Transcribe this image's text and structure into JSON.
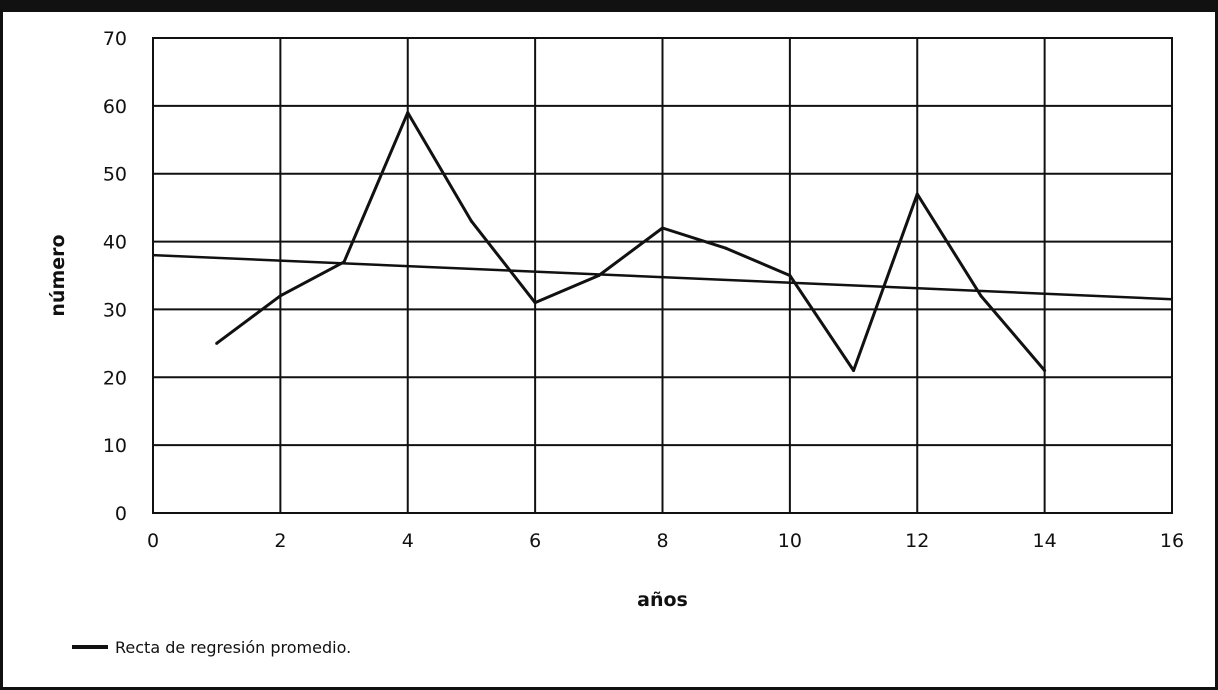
{
  "chart_data": {
    "type": "line",
    "title": "",
    "xlabel": "años",
    "ylabel": "número",
    "xlim": [
      0,
      16
    ],
    "ylim": [
      0,
      70
    ],
    "x_ticks": [
      0,
      2,
      4,
      6,
      8,
      10,
      12,
      14,
      16
    ],
    "y_ticks": [
      0,
      10,
      20,
      30,
      40,
      50,
      60,
      70
    ],
    "grid": true,
    "legend_position": "bottom-left",
    "line_color": "#111111",
    "series": [
      {
        "x": [
          1,
          2,
          3,
          4,
          5,
          6,
          7,
          8,
          9,
          10,
          11,
          12,
          13,
          14
        ],
        "y": [
          25,
          32,
          37,
          59,
          43,
          31,
          35,
          42,
          39,
          35,
          21,
          47,
          32,
          21
        ]
      },
      {
        "name": "Recta de regresión promedio.",
        "x": [
          0,
          16
        ],
        "y": [
          38,
          31.5
        ]
      }
    ]
  }
}
